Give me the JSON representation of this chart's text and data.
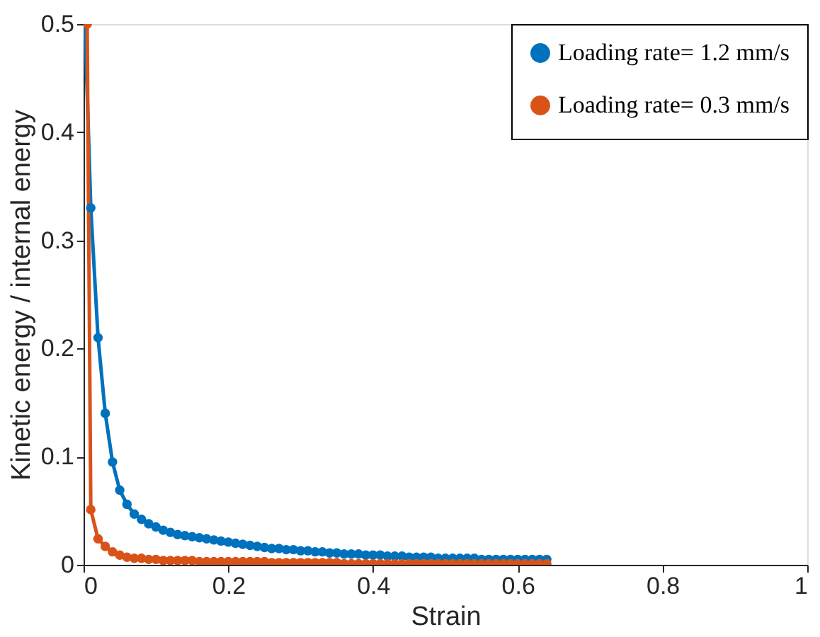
{
  "chart_data": {
    "type": "line",
    "xlabel": "Strain",
    "ylabel": "Kinetic energy / internal energy",
    "xlim": [
      0,
      1
    ],
    "xticks": [
      0,
      0.2,
      0.4,
      0.6,
      0.8,
      1
    ],
    "ylim": [
      0,
      0.5
    ],
    "yticks": [
      0,
      0.1,
      0.2,
      0.3,
      0.4,
      0.5
    ],
    "grid": false,
    "legend": "top right",
    "marker": "circle",
    "line_style": "solid",
    "series": [
      {
        "name": "Loading rate= 1.2 mm/s",
        "color": "#0072bd",
        "x": [
          0.002,
          0.01,
          0.02,
          0.03,
          0.04,
          0.05,
          0.06,
          0.07,
          0.08,
          0.09,
          0.1,
          0.11,
          0.12,
          0.13,
          0.14,
          0.15,
          0.16,
          0.17,
          0.18,
          0.19,
          0.2,
          0.21,
          0.22,
          0.23,
          0.24,
          0.25,
          0.26,
          0.27,
          0.28,
          0.29,
          0.3,
          0.31,
          0.32,
          0.33,
          0.34,
          0.35,
          0.36,
          0.37,
          0.38,
          0.39,
          0.4,
          0.41,
          0.42,
          0.43,
          0.44,
          0.45,
          0.46,
          0.47,
          0.48,
          0.49,
          0.5,
          0.51,
          0.52,
          0.53,
          0.54,
          0.55,
          0.56,
          0.57,
          0.58,
          0.59,
          0.6,
          0.61,
          0.62,
          0.63,
          0.64
        ],
        "values": [
          0.5,
          0.33,
          0.21,
          0.14,
          0.095,
          0.069,
          0.056,
          0.047,
          0.042,
          0.038,
          0.035,
          0.032,
          0.03,
          0.028,
          0.027,
          0.026,
          0.025,
          0.024,
          0.023,
          0.022,
          0.021,
          0.02,
          0.019,
          0.018,
          0.017,
          0.016,
          0.015,
          0.015,
          0.014,
          0.014,
          0.013,
          0.013,
          0.012,
          0.012,
          0.011,
          0.011,
          0.01,
          0.01,
          0.01,
          0.009,
          0.009,
          0.009,
          0.008,
          0.008,
          0.008,
          0.007,
          0.007,
          0.007,
          0.007,
          0.006,
          0.006,
          0.006,
          0.006,
          0.006,
          0.006,
          0.005,
          0.005,
          0.005,
          0.005,
          0.005,
          0.005,
          0.005,
          0.005,
          0.005,
          0.005
        ]
      },
      {
        "name": "Loading rate= 0.3 mm/s",
        "color": "#d95319",
        "x": [
          0.005,
          0.01,
          0.02,
          0.03,
          0.04,
          0.05,
          0.06,
          0.07,
          0.08,
          0.09,
          0.1,
          0.11,
          0.12,
          0.13,
          0.14,
          0.15,
          0.16,
          0.17,
          0.18,
          0.19,
          0.2,
          0.21,
          0.22,
          0.23,
          0.24,
          0.25,
          0.26,
          0.27,
          0.28,
          0.29,
          0.3,
          0.31,
          0.32,
          0.33,
          0.34,
          0.35,
          0.36,
          0.37,
          0.38,
          0.39,
          0.4,
          0.41,
          0.42,
          0.43,
          0.44,
          0.45,
          0.46,
          0.47,
          0.48,
          0.49,
          0.5,
          0.51,
          0.52,
          0.53,
          0.54,
          0.55,
          0.56,
          0.57,
          0.58,
          0.59,
          0.6,
          0.61,
          0.62,
          0.63,
          0.64
        ],
        "values": [
          0.5,
          0.051,
          0.024,
          0.017,
          0.012,
          0.009,
          0.007,
          0.006,
          0.006,
          0.005,
          0.005,
          0.004,
          0.004,
          0.004,
          0.004,
          0.004,
          0.003,
          0.003,
          0.003,
          0.003,
          0.003,
          0.003,
          0.003,
          0.003,
          0.003,
          0.003,
          0.002,
          0.002,
          0.002,
          0.002,
          0.002,
          0.002,
          0.002,
          0.002,
          0.002,
          0.002,
          0.001,
          0.001,
          0.001,
          0.001,
          0.001,
          0.001,
          0.001,
          0.001,
          0.001,
          0.001,
          0.001,
          0.001,
          0.001,
          0.001,
          0.001,
          0.001,
          0.001,
          0.001,
          0.001,
          0.001,
          0.001,
          0.001,
          0.001,
          0.001,
          0.001,
          0.001,
          0.001,
          0.001,
          0.001
        ]
      }
    ]
  }
}
